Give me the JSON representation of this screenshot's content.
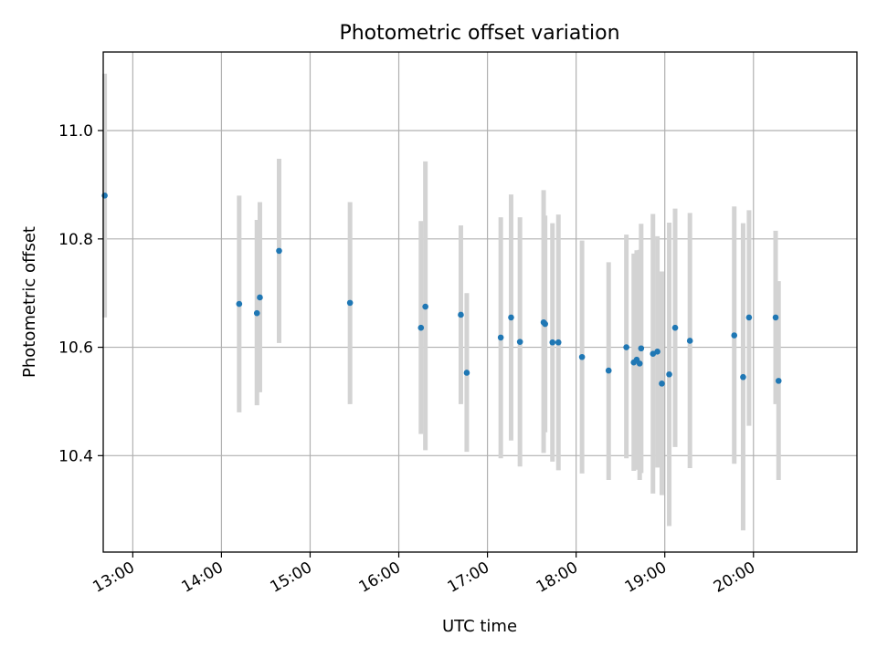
{
  "chart_data": {
    "type": "scatter",
    "title": "Photometric offset variation",
    "xlabel": "UTC time",
    "ylabel": "Photometric offset",
    "x_unit": "UTC time (HH:MM)",
    "xlim": [
      "12:40",
      "21:10"
    ],
    "ylim": [
      10.222,
      11.145
    ],
    "x_ticks": [
      "13:00",
      "14:00",
      "15:00",
      "16:00",
      "17:00",
      "18:00",
      "19:00",
      "20:00"
    ],
    "y_ticks": [
      "10.4",
      "10.6",
      "10.8",
      "11.0"
    ],
    "grid": true,
    "colors": {
      "marker": "#1f77b4",
      "errorbar": "#d3d3d3",
      "grid": "#b0b0b0"
    },
    "points": [
      {
        "t": "12:41",
        "y": 10.88,
        "lo": 10.655,
        "hi": 11.105
      },
      {
        "t": "14:12",
        "y": 10.68,
        "lo": 10.48,
        "hi": 10.88
      },
      {
        "t": "14:24",
        "y": 10.663,
        "lo": 10.493,
        "hi": 10.835
      },
      {
        "t": "14:26",
        "y": 10.692,
        "lo": 10.517,
        "hi": 10.868
      },
      {
        "t": "14:39",
        "y": 10.778,
        "lo": 10.608,
        "hi": 10.948
      },
      {
        "t": "15:27",
        "y": 10.682,
        "lo": 10.495,
        "hi": 10.868
      },
      {
        "t": "16:15",
        "y": 10.636,
        "lo": 10.44,
        "hi": 10.833
      },
      {
        "t": "16:18",
        "y": 10.675,
        "lo": 10.41,
        "hi": 10.943
      },
      {
        "t": "16:42",
        "y": 10.66,
        "lo": 10.495,
        "hi": 10.825
      },
      {
        "t": "16:46",
        "y": 10.553,
        "lo": 10.407,
        "hi": 10.7
      },
      {
        "t": "17:09",
        "y": 10.618,
        "lo": 10.395,
        "hi": 10.84
      },
      {
        "t": "17:16",
        "y": 10.655,
        "lo": 10.428,
        "hi": 10.882
      },
      {
        "t": "17:22",
        "y": 10.61,
        "lo": 10.38,
        "hi": 10.84
      },
      {
        "t": "17:38",
        "y": 10.646,
        "lo": 10.405,
        "hi": 10.89
      },
      {
        "t": "17:39",
        "y": 10.643,
        "lo": 10.443,
        "hi": 10.843
      },
      {
        "t": "17:44",
        "y": 10.609,
        "lo": 10.389,
        "hi": 10.829
      },
      {
        "t": "17:48",
        "y": 10.609,
        "lo": 10.373,
        "hi": 10.845
      },
      {
        "t": "18:04",
        "y": 10.582,
        "lo": 10.367,
        "hi": 10.797
      },
      {
        "t": "18:22",
        "y": 10.557,
        "lo": 10.355,
        "hi": 10.757
      },
      {
        "t": "18:34",
        "y": 10.6,
        "lo": 10.395,
        "hi": 10.808
      },
      {
        "t": "18:39",
        "y": 10.572,
        "lo": 10.372,
        "hi": 10.773
      },
      {
        "t": "18:41",
        "y": 10.577,
        "lo": 10.374,
        "hi": 10.779
      },
      {
        "t": "18:43",
        "y": 10.57,
        "lo": 10.355,
        "hi": 10.78
      },
      {
        "t": "18:44",
        "y": 10.598,
        "lo": 10.368,
        "hi": 10.828
      },
      {
        "t": "18:52",
        "y": 10.588,
        "lo": 10.33,
        "hi": 10.846
      },
      {
        "t": "18:55",
        "y": 10.592,
        "lo": 10.378,
        "hi": 10.805
      },
      {
        "t": "18:58",
        "y": 10.533,
        "lo": 10.327,
        "hi": 10.74
      },
      {
        "t": "19:03",
        "y": 10.55,
        "lo": 10.27,
        "hi": 10.83
      },
      {
        "t": "19:07",
        "y": 10.636,
        "lo": 10.416,
        "hi": 10.856
      },
      {
        "t": "19:17",
        "y": 10.612,
        "lo": 10.377,
        "hi": 10.848
      },
      {
        "t": "19:47",
        "y": 10.622,
        "lo": 10.385,
        "hi": 10.86
      },
      {
        "t": "19:53",
        "y": 10.545,
        "lo": 10.262,
        "hi": 10.829
      },
      {
        "t": "19:57",
        "y": 10.655,
        "lo": 10.455,
        "hi": 10.853
      },
      {
        "t": "20:15",
        "y": 10.655,
        "lo": 10.495,
        "hi": 10.815
      },
      {
        "t": "20:17",
        "y": 10.538,
        "lo": 10.355,
        "hi": 10.722
      }
    ]
  }
}
